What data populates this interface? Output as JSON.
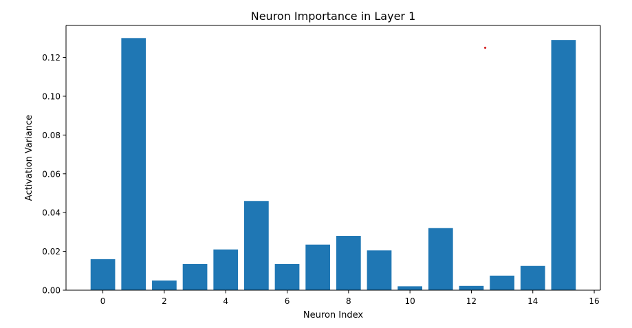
{
  "chart_data": {
    "type": "bar",
    "title": "Neuron Importance in Layer 1",
    "xlabel": "Neuron Index",
    "ylabel": "Activation Variance",
    "x": [
      0,
      1,
      2,
      3,
      4,
      5,
      6,
      7,
      8,
      9,
      10,
      11,
      12,
      13,
      14,
      15
    ],
    "values": [
      0.016,
      0.13,
      0.005,
      0.0135,
      0.021,
      0.046,
      0.0135,
      0.0235,
      0.028,
      0.0205,
      0.002,
      0.032,
      0.0022,
      0.0075,
      0.0125,
      0.129
    ],
    "xlim": [
      -1.2,
      16.2
    ],
    "ylim": [
      0,
      0.1365
    ],
    "xticks": [
      0,
      2,
      4,
      6,
      8,
      10,
      12,
      14,
      16
    ],
    "yticks": [
      0.0,
      0.02,
      0.04,
      0.06,
      0.08,
      0.1,
      0.12
    ],
    "ytick_labels": [
      "0.00",
      "0.02",
      "0.04",
      "0.06",
      "0.08",
      "0.10",
      "0.12"
    ],
    "bar_color": "#1f77b4",
    "marker": {
      "x": 12.45,
      "y": 0.125,
      "color": "#d62728"
    },
    "grid": false,
    "legend": "none"
  }
}
